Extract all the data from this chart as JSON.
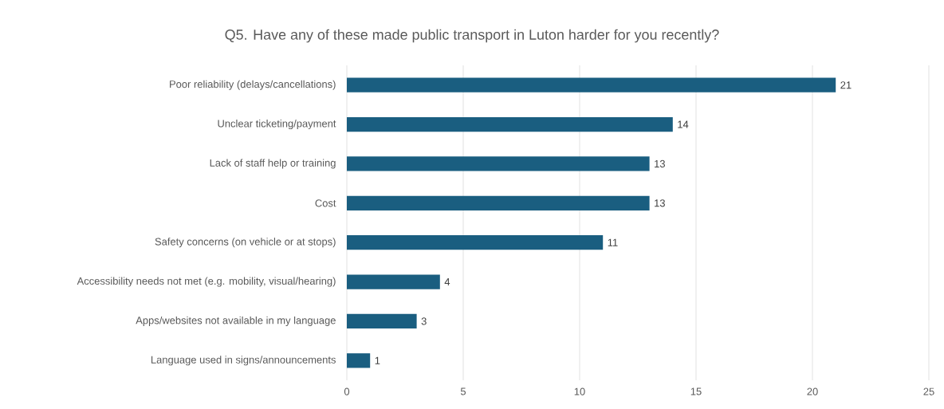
{
  "chart_data": {
    "type": "bar",
    "orientation": "horizontal",
    "title": "Q5. Have any of these made public transport in Luton harder for you recently?",
    "categories": [
      "Poor reliability (delays/cancellations)",
      "Unclear ticketing/payment",
      "Lack of staff help or training",
      "Cost",
      "Safety concerns (on vehicle or at stops)",
      "Accessibility needs not met (e.g. mobility, visual/hearing)",
      "Apps/websites not available in my language",
      "Language used in signs/announcements"
    ],
    "values": [
      21,
      14,
      13,
      13,
      11,
      4,
      3,
      1
    ],
    "color": "#1a5e80",
    "xlim": [
      0,
      25
    ],
    "xticks": [
      0,
      5,
      10,
      15,
      20,
      25
    ],
    "grid": "x",
    "data_labels": true
  }
}
